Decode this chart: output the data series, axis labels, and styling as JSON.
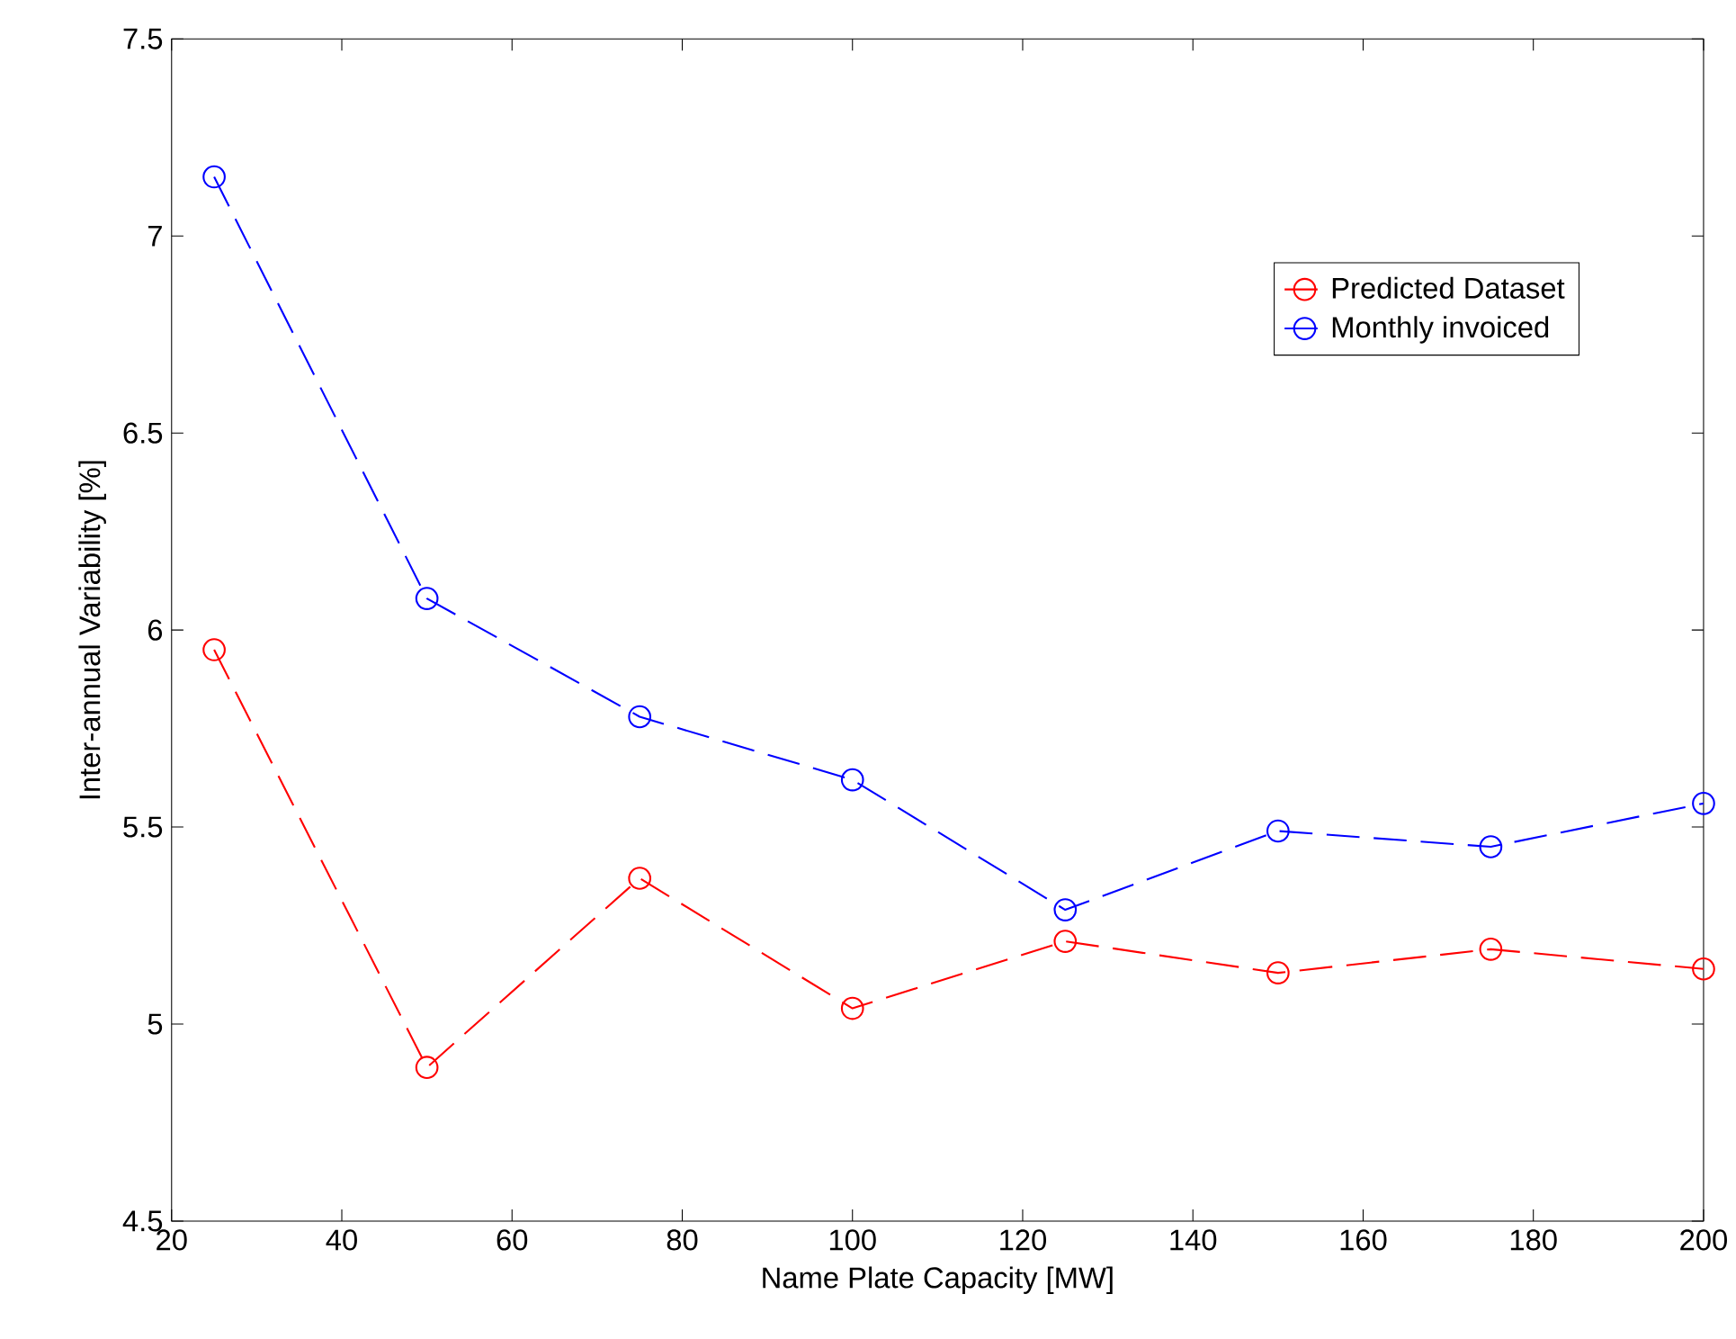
{
  "chart_data": {
    "type": "line",
    "xlabel": "Name Plate Capacity [MW]",
    "ylabel": "Inter-annual Variability [%]",
    "x": [
      25,
      50,
      75,
      100,
      125,
      150,
      175,
      200
    ],
    "series": [
      {
        "name": "Predicted Dataset",
        "color": "#ff0000",
        "values": [
          5.95,
          4.89,
          5.37,
          5.04,
          5.21,
          5.13,
          5.19,
          5.14
        ]
      },
      {
        "name": "Monthly invoiced",
        "color": "#0000ff",
        "values": [
          7.15,
          6.08,
          5.78,
          5.62,
          5.29,
          5.49,
          5.45,
          5.56
        ]
      }
    ],
    "xlim": [
      20,
      200
    ],
    "xticks": [
      20,
      40,
      60,
      80,
      100,
      120,
      140,
      160,
      180,
      200
    ],
    "ylim": [
      4.5,
      7.5
    ],
    "yticks": [
      4.5,
      5,
      5.5,
      6,
      6.5,
      7,
      7.5
    ],
    "grid": false,
    "legend": "top right",
    "marker": "circle",
    "line_style": "dashed"
  }
}
